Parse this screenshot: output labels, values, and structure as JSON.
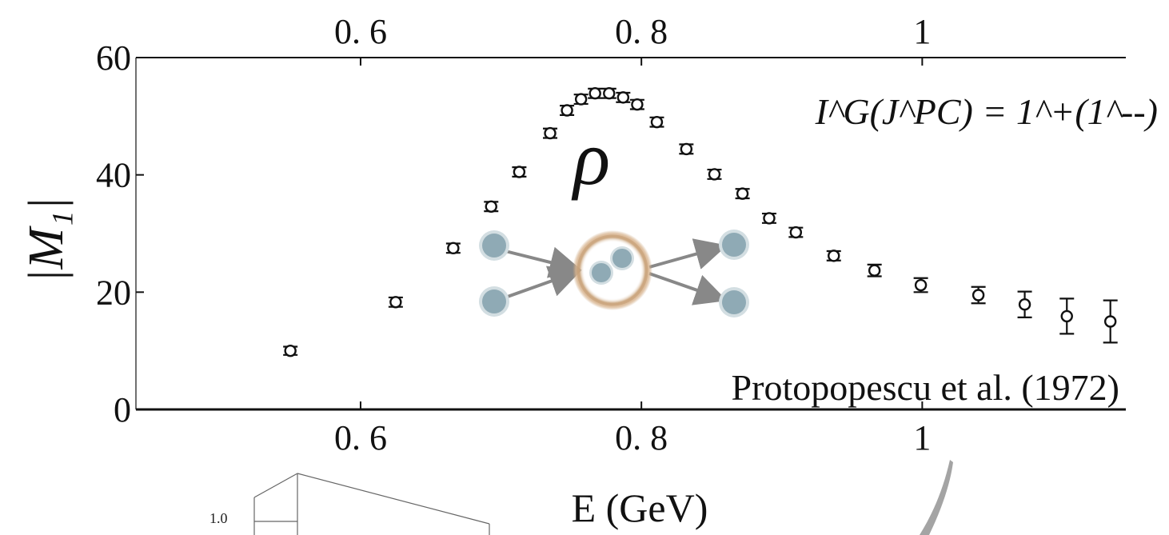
{
  "chart_data": {
    "type": "scatter",
    "x_ticks": [
      0.6,
      0.8,
      1
    ],
    "x_tick_labels": [
      "0. 6",
      "0. 8",
      "1"
    ],
    "y_ticks": [
      0,
      20,
      40,
      60
    ],
    "y_tick_labels": [
      "0",
      "20",
      "40",
      "60"
    ],
    "xlim": [
      0.44,
      1.145
    ],
    "ylim": [
      0,
      60
    ],
    "xlabel": "E (GeV)",
    "ylabel": "|M₁|",
    "quantum_numbers": "I^G(J^PC) = 1^+(1^--)",
    "resonance_symbol": "ρ",
    "source_annotation": "Protopopescu et al. (1972)",
    "grid": false,
    "legend": "none",
    "series": [
      {
        "points": [
          {
            "x": 0.55,
            "y": 10.0,
            "err": 0.7
          },
          {
            "x": 0.625,
            "y": 18.3,
            "err": 0.8
          },
          {
            "x": 0.666,
            "y": 27.5,
            "err": 0.8
          },
          {
            "x": 0.693,
            "y": 34.6,
            "err": 0.8
          },
          {
            "x": 0.713,
            "y": 40.5,
            "err": 0.8
          },
          {
            "x": 0.735,
            "y": 47.1,
            "err": 0.8
          },
          {
            "x": 0.747,
            "y": 51.0,
            "err": 0.8
          },
          {
            "x": 0.757,
            "y": 52.9,
            "err": 0.8
          },
          {
            "x": 0.767,
            "y": 53.9,
            "err": 0.8
          },
          {
            "x": 0.777,
            "y": 53.9,
            "err": 0.8
          },
          {
            "x": 0.787,
            "y": 53.2,
            "err": 0.8
          },
          {
            "x": 0.797,
            "y": 52.0,
            "err": 0.8
          },
          {
            "x": 0.811,
            "y": 49.0,
            "err": 0.8
          },
          {
            "x": 0.832,
            "y": 44.4,
            "err": 0.8
          },
          {
            "x": 0.852,
            "y": 40.1,
            "err": 0.8
          },
          {
            "x": 0.872,
            "y": 36.8,
            "err": 0.8
          },
          {
            "x": 0.891,
            "y": 32.6,
            "err": 0.8
          },
          {
            "x": 0.91,
            "y": 30.2,
            "err": 0.8
          },
          {
            "x": 0.937,
            "y": 26.2,
            "err": 0.8
          },
          {
            "x": 0.966,
            "y": 23.7,
            "err": 1.0
          },
          {
            "x": 0.999,
            "y": 21.2,
            "err": 1.2
          },
          {
            "x": 1.04,
            "y": 19.5,
            "err": 1.4
          },
          {
            "x": 1.073,
            "y": 17.9,
            "err": 2.2
          },
          {
            "x": 1.103,
            "y": 15.9,
            "err": 3.0
          },
          {
            "x": 1.134,
            "y": 15.0,
            "err": 3.6
          }
        ]
      }
    ]
  },
  "colors": {
    "ink": "#111111",
    "particle_fill": "#8FAAB5",
    "particle_rim": "#D3DEE2",
    "resonance_ring": "#C9A37A",
    "arrow": "#888888",
    "background_scribble": "#9a9a9a",
    "panel_lines": "#666666"
  },
  "background_panel": {
    "tick_label": "1.0"
  },
  "icons": {
    "scattering_diagram": "two-particles-into-resonance-into-two-particles"
  }
}
